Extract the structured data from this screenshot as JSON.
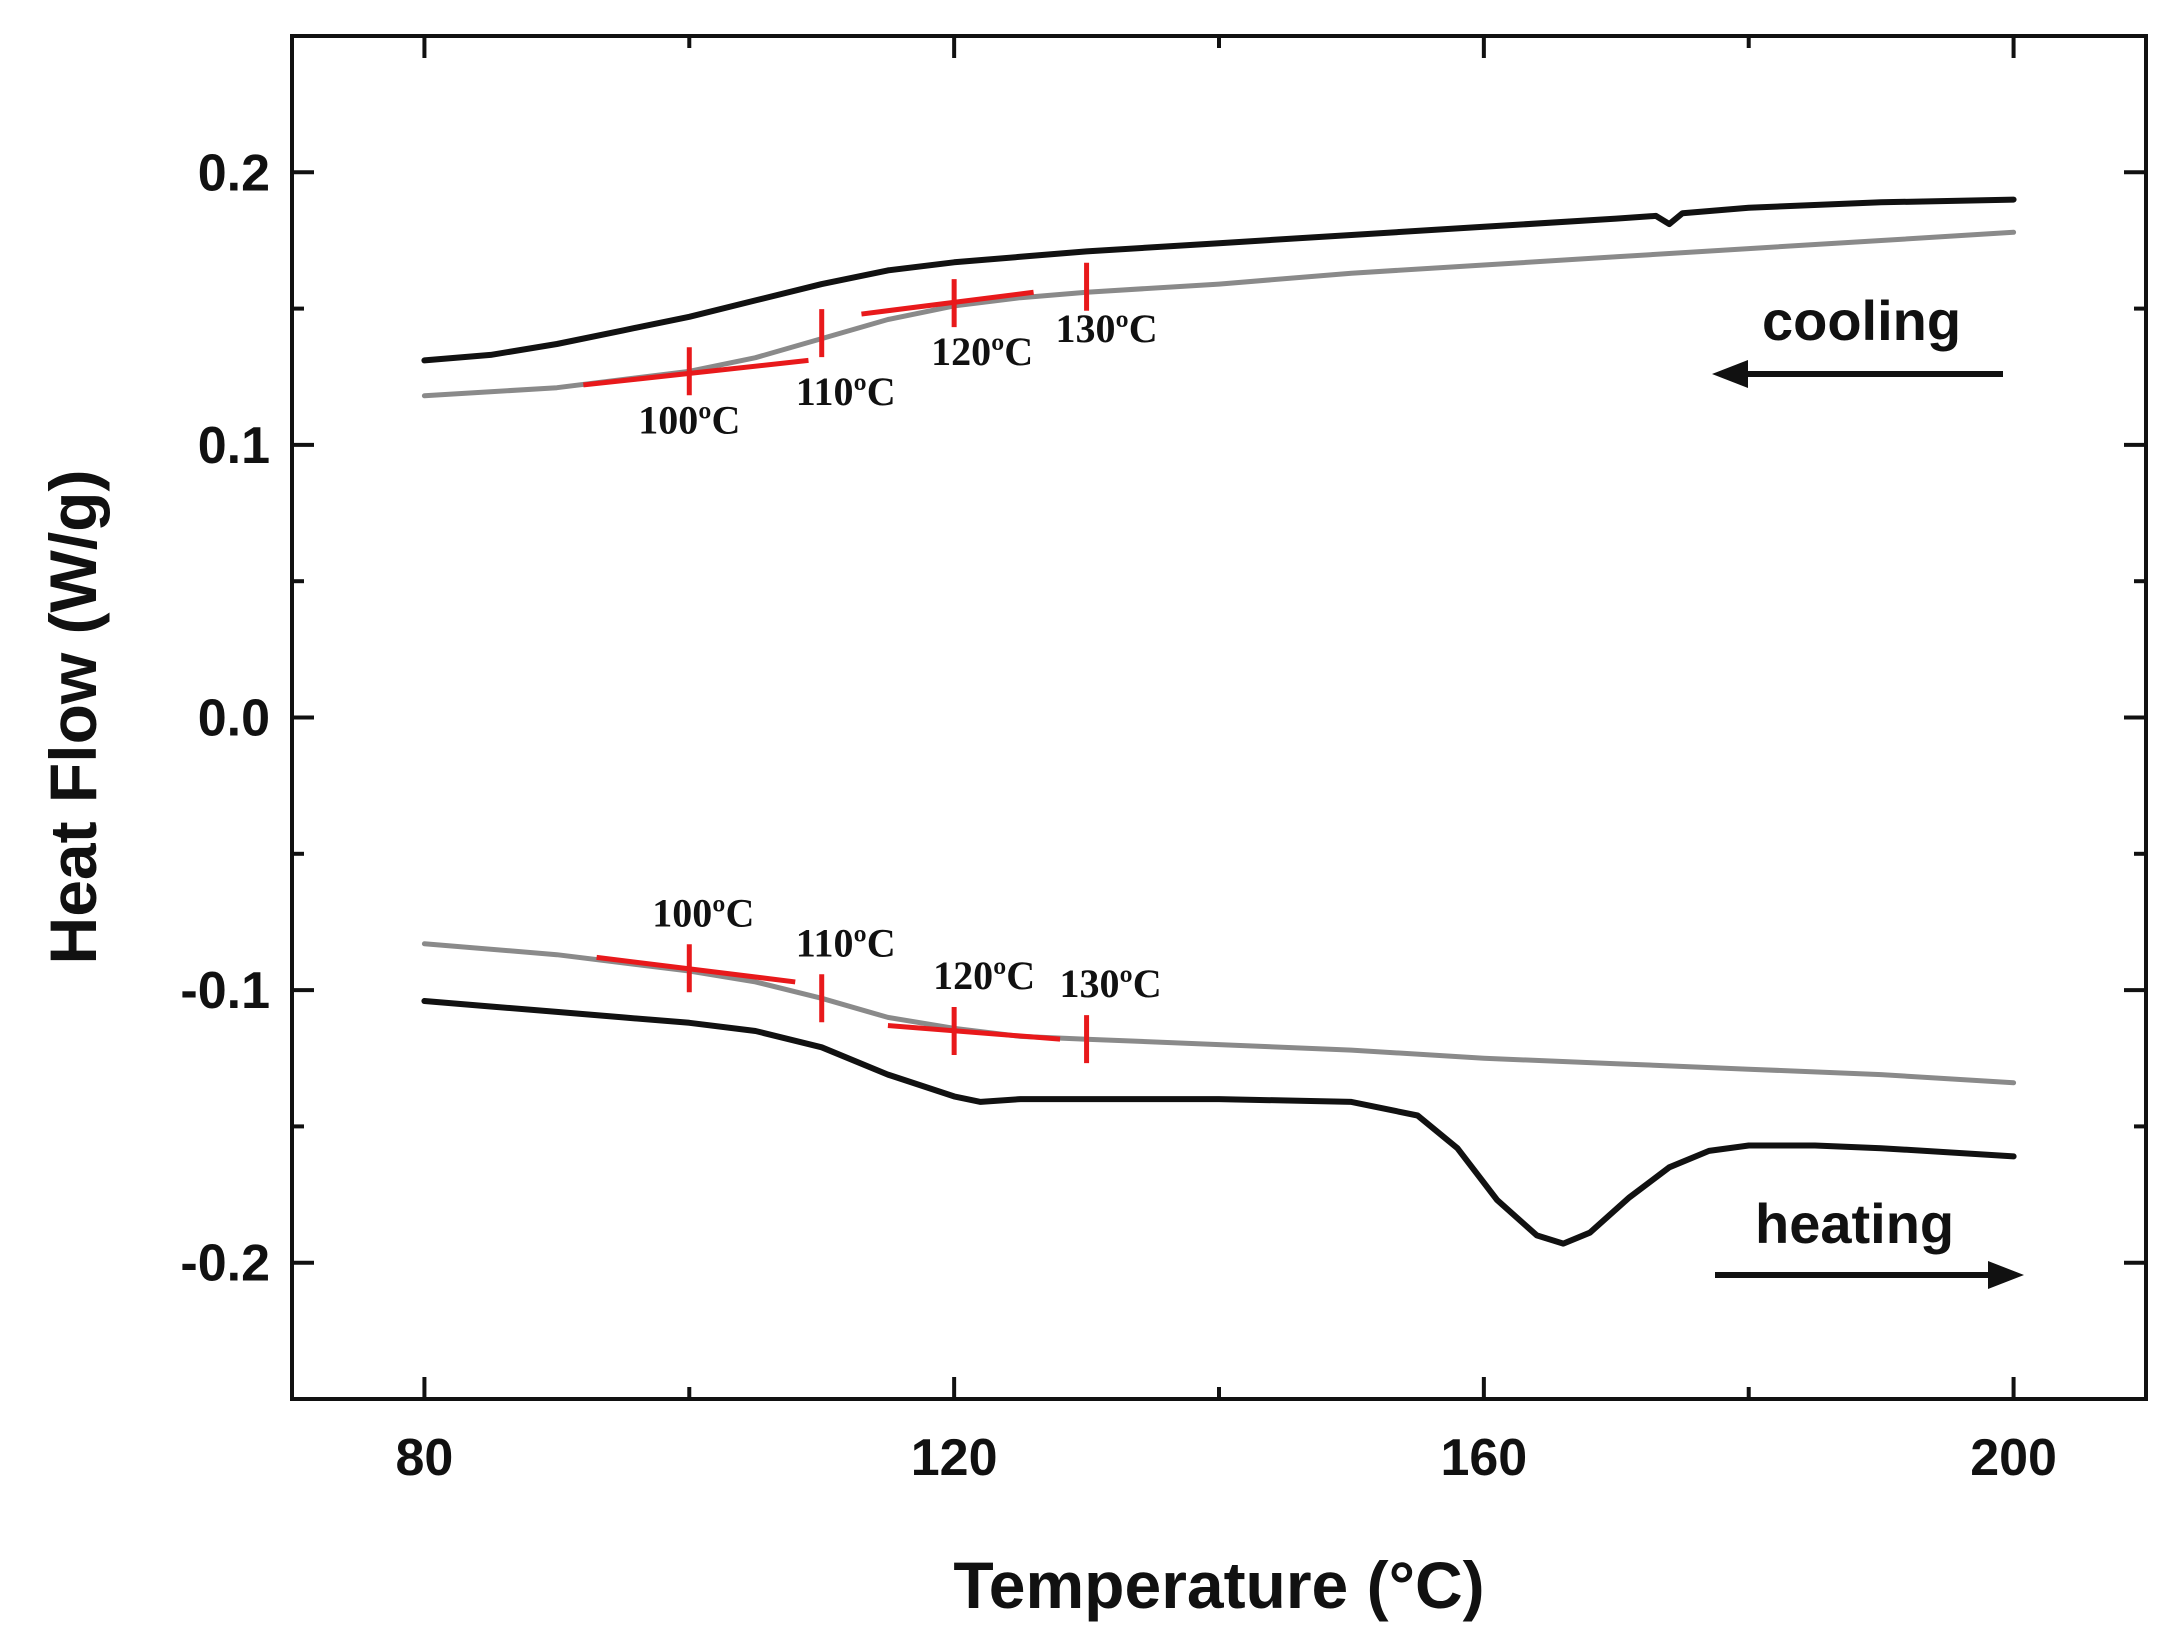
{
  "chart_data": {
    "type": "line",
    "xlabel": "Temperature (°C)",
    "ylabel": "Heat Flow (W/g)",
    "xlim": [
      70,
      210
    ],
    "ylim": [
      -0.25,
      0.25
    ],
    "x_ticks": [
      80,
      120,
      160,
      200
    ],
    "x_tick_labels": [
      "80",
      "120",
      "160",
      "200"
    ],
    "x_minor_ticks": [
      100,
      140,
      180
    ],
    "y_ticks": [
      -0.2,
      -0.1,
      0.0,
      0.1,
      0.2
    ],
    "y_tick_labels": [
      "-0.2",
      "-0.1",
      "0.0",
      "0.1",
      "0.2"
    ],
    "y_minor_ticks": [
      -0.15,
      -0.05,
      0.05,
      0.15
    ],
    "grid": false,
    "colors": {
      "black_curve": "#111111",
      "grey_curve": "#8a8a8a",
      "markers": "#e8191b",
      "frame": "#111111"
    },
    "series": [
      {
        "color": "black",
        "group": "cooling",
        "x": [
          80,
          85,
          90,
          95,
          100,
          105,
          110,
          115,
          120,
          125,
          130,
          140,
          150,
          160,
          170,
          173,
          174,
          175,
          180,
          190,
          200
        ],
        "y": [
          0.131,
          0.133,
          0.137,
          0.142,
          0.147,
          0.153,
          0.159,
          0.164,
          0.167,
          0.169,
          0.171,
          0.174,
          0.177,
          0.18,
          0.183,
          0.184,
          0.181,
          0.185,
          0.187,
          0.189,
          0.19
        ]
      },
      {
        "color": "grey",
        "group": "cooling",
        "x": [
          80,
          90,
          100,
          105,
          110,
          115,
          120,
          125,
          130,
          140,
          150,
          160,
          170,
          180,
          190,
          200
        ],
        "y": [
          0.118,
          0.121,
          0.127,
          0.132,
          0.139,
          0.146,
          0.151,
          0.154,
          0.156,
          0.159,
          0.163,
          0.166,
          0.169,
          0.172,
          0.175,
          0.178
        ]
      },
      {
        "color": "grey",
        "group": "heating",
        "x": [
          80,
          90,
          100,
          105,
          110,
          115,
          120,
          125,
          130,
          140,
          150,
          160,
          170,
          180,
          190,
          200
        ],
        "y": [
          -0.083,
          -0.087,
          -0.093,
          -0.097,
          -0.103,
          -0.11,
          -0.114,
          -0.117,
          -0.118,
          -0.12,
          -0.122,
          -0.125,
          -0.127,
          -0.129,
          -0.131,
          -0.134
        ]
      },
      {
        "color": "black",
        "group": "heating",
        "x": [
          80,
          85,
          90,
          95,
          100,
          105,
          110,
          115,
          120,
          122,
          125,
          130,
          140,
          150,
          155,
          158,
          161,
          164,
          166,
          168,
          171,
          174,
          177,
          180,
          185,
          190,
          200
        ],
        "y": [
          -0.104,
          -0.106,
          -0.108,
          -0.11,
          -0.112,
          -0.115,
          -0.121,
          -0.131,
          -0.139,
          -0.141,
          -0.14,
          -0.14,
          -0.14,
          -0.141,
          -0.146,
          -0.158,
          -0.177,
          -0.19,
          -0.193,
          -0.189,
          -0.176,
          -0.165,
          -0.159,
          -0.157,
          -0.157,
          -0.158,
          -0.161
        ]
      }
    ],
    "markers": [
      {
        "x": 100,
        "y": 0.127,
        "label": "100ºC"
      },
      {
        "x": 110,
        "y": 0.141,
        "label": "110ºC"
      },
      {
        "x": 120,
        "y": 0.152,
        "label": "120ºC"
      },
      {
        "x": 130,
        "y": 0.158,
        "label": "130ºC"
      },
      {
        "x": 100,
        "y": -0.092,
        "label": "100ºC"
      },
      {
        "x": 110,
        "y": -0.103,
        "label": "110ºC"
      },
      {
        "x": 120,
        "y": -0.115,
        "label": "120ºC"
      },
      {
        "x": 130,
        "y": -0.118,
        "label": "130ºC"
      }
    ],
    "tangent_lines": [
      {
        "x": [
          92,
          109
        ],
        "y": [
          0.122,
          0.131
        ]
      },
      {
        "x": [
          113,
          126
        ],
        "y": [
          0.148,
          0.156
        ]
      },
      {
        "x": [
          93,
          108
        ],
        "y": [
          -0.088,
          -0.097
        ]
      },
      {
        "x": [
          115,
          128
        ],
        "y": [
          -0.113,
          -0.118
        ]
      }
    ],
    "annotations": [
      {
        "text": "cooling",
        "arrow": "left"
      },
      {
        "text": "heating",
        "arrow": "right"
      }
    ]
  }
}
